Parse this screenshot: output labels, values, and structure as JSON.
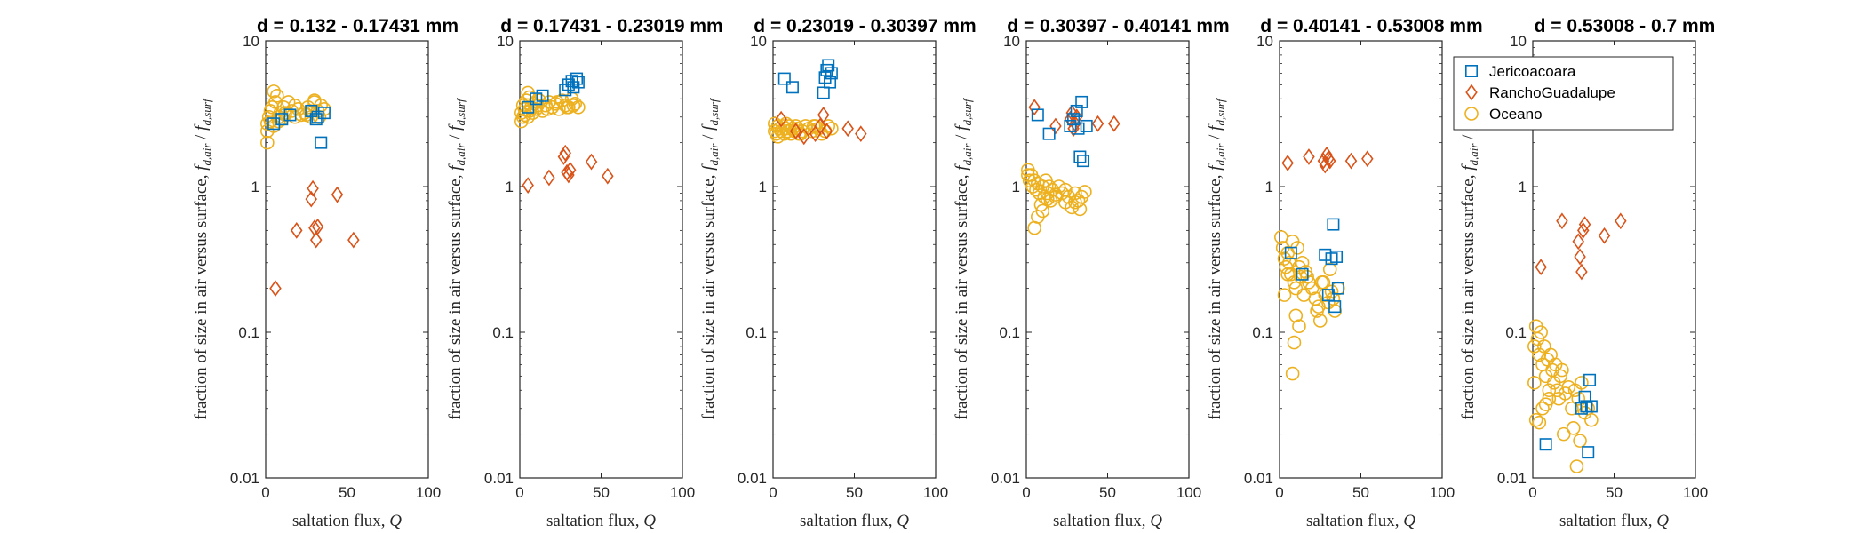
{
  "chart_data": [
    {
      "type": "scatter",
      "title": "d = 0.132 - 0.17431 mm",
      "xlabel": "saltation flux, Q",
      "ylabel": "fraction of size in air versus surface, f_d,air / f_d,surf",
      "xlim": [
        0,
        100
      ],
      "ylim": [
        0.01,
        10
      ],
      "yscale": "log",
      "xticks": [
        "0",
        "50",
        "100"
      ],
      "yticks": [
        "0.01",
        "0.1",
        "1",
        "10"
      ],
      "series": [
        {
          "name": "Jericoacoara",
          "x": [
            5,
            10,
            15,
            28,
            31,
            32,
            34,
            36
          ],
          "y": [
            2.7,
            2.9,
            3.1,
            3.3,
            2.9,
            3.0,
            2.0,
            3.2
          ]
        },
        {
          "name": "RanchoGuadalupe",
          "x": [
            6,
            19,
            28,
            29,
            30,
            31,
            32,
            44,
            54
          ],
          "y": [
            0.2,
            0.5,
            0.82,
            0.97,
            0.52,
            0.43,
            0.53,
            0.88,
            0.43
          ]
        },
        {
          "name": "Oceano",
          "x": [
            1,
            1,
            1,
            2,
            3,
            3,
            4,
            5,
            6,
            7,
            8,
            9,
            10,
            11,
            12,
            14,
            16,
            18,
            20,
            22,
            24,
            26,
            28,
            30,
            32,
            34,
            36,
            5,
            8,
            12,
            18,
            25,
            30,
            27,
            33
          ],
          "y": [
            2.0,
            2.4,
            2.7,
            3.0,
            2.8,
            3.3,
            3.5,
            4.5,
            3.8,
            4.2,
            3.0,
            3.2,
            2.9,
            3.5,
            3.1,
            3.8,
            3.3,
            3.0,
            3.4,
            3.1,
            3.2,
            3.5,
            3.0,
            3.8,
            3.3,
            3.6,
            3.4,
            2.6,
            2.8,
            3.2,
            3.6,
            3.1,
            3.9,
            3.3,
            3.0
          ]
        }
      ]
    },
    {
      "type": "scatter",
      "title": "d = 0.17431 - 0.23019 mm",
      "xlabel": "saltation flux, Q",
      "ylabel": "fraction of size in air versus surface, f_d,air / f_d,surf",
      "xlim": [
        0,
        100
      ],
      "ylim": [
        0.01,
        10
      ],
      "yscale": "log",
      "xticks": [
        "0",
        "50",
        "100"
      ],
      "yticks": [
        "0.01",
        "0.1",
        "1",
        "10"
      ],
      "series": [
        {
          "name": "Jericoacoara",
          "x": [
            5,
            10,
            14,
            28,
            30,
            32,
            33,
            35,
            36
          ],
          "y": [
            3.5,
            4.0,
            4.2,
            4.6,
            5.0,
            5.3,
            4.8,
            5.5,
            5.2
          ]
        },
        {
          "name": "RanchoGuadalupe",
          "x": [
            5,
            18,
            27,
            28,
            29,
            30,
            31,
            44,
            54
          ],
          "y": [
            1.02,
            1.15,
            1.6,
            1.7,
            1.25,
            1.2,
            1.3,
            1.48,
            1.18
          ]
        },
        {
          "name": "Oceano",
          "x": [
            1,
            1,
            2,
            2,
            3,
            4,
            5,
            5,
            6,
            7,
            8,
            9,
            10,
            12,
            14,
            16,
            18,
            20,
            22,
            24,
            26,
            28,
            30,
            32,
            34,
            36,
            3,
            6,
            11,
            17,
            23,
            29,
            33
          ],
          "y": [
            2.8,
            3.2,
            3.0,
            3.6,
            3.4,
            3.9,
            4.4,
            3.0,
            4.1,
            3.5,
            3.2,
            3.7,
            3.4,
            3.9,
            3.3,
            3.6,
            3.8,
            3.5,
            3.7,
            3.4,
            3.9,
            3.6,
            3.5,
            4.0,
            3.7,
            3.5,
            3.1,
            3.3,
            3.6,
            3.4,
            3.8,
            3.5,
            3.6
          ]
        }
      ]
    },
    {
      "type": "scatter",
      "title": "d = 0.23019 - 0.30397 mm",
      "xlabel": "saltation flux, Q",
      "ylabel": "fraction of size in air versus surface, f_d,air / f_d,surf",
      "xlim": [
        0,
        100
      ],
      "ylim": [
        0.01,
        10
      ],
      "yscale": "log",
      "xticks": [
        "0",
        "50",
        "100"
      ],
      "yticks": [
        "0.01",
        "0.1",
        "1",
        "10"
      ],
      "series": [
        {
          "name": "Jericoacoara",
          "x": [
            7,
            12,
            31,
            32,
            33,
            34,
            35,
            36
          ],
          "y": [
            5.5,
            4.8,
            4.4,
            5.6,
            6.3,
            6.8,
            5.2,
            6.0
          ]
        },
        {
          "name": "RanchoGuadalupe",
          "x": [
            5,
            14,
            19,
            26,
            29,
            31,
            33,
            46,
            54
          ],
          "y": [
            2.9,
            2.4,
            2.2,
            2.3,
            2.6,
            3.1,
            2.4,
            2.5,
            2.3
          ]
        },
        {
          "name": "Oceano",
          "x": [
            1,
            1,
            2,
            3,
            4,
            5,
            6,
            7,
            8,
            9,
            10,
            11,
            12,
            13,
            14,
            15,
            16,
            18,
            20,
            22,
            24,
            26,
            28,
            30,
            32,
            34,
            36,
            3,
            8,
            17,
            25
          ],
          "y": [
            2.4,
            2.7,
            2.3,
            2.6,
            2.5,
            2.4,
            2.6,
            2.3,
            2.5,
            2.4,
            2.6,
            2.3,
            2.5,
            2.4,
            2.6,
            2.5,
            2.3,
            2.4,
            2.6,
            2.5,
            2.4,
            2.6,
            2.5,
            2.3,
            2.4,
            2.6,
            2.5,
            2.2,
            2.7,
            2.3,
            2.6
          ]
        }
      ]
    },
    {
      "type": "scatter",
      "title": "d = 0.30397 - 0.40141 mm",
      "xlabel": "saltation flux, Q",
      "ylabel": "fraction of size in air versus surface, f_d,air / f_d,surf",
      "xlim": [
        0,
        100
      ],
      "ylim": [
        0.01,
        10
      ],
      "yscale": "log",
      "xticks": [
        "0",
        "50",
        "100"
      ],
      "yticks": [
        "0.01",
        "0.1",
        "1",
        "10"
      ],
      "series": [
        {
          "name": "Jericoacoara",
          "x": [
            7,
            14,
            27,
            29,
            31,
            32,
            33,
            34,
            35,
            37
          ],
          "y": [
            3.1,
            2.3,
            2.6,
            2.9,
            3.3,
            2.5,
            1.6,
            3.8,
            1.5,
            2.6
          ]
        },
        {
          "name": "RanchoGuadalupe",
          "x": [
            5,
            18,
            27,
            28,
            29,
            30,
            31,
            44,
            54
          ],
          "y": [
            3.5,
            2.6,
            2.9,
            3.2,
            2.5,
            2.7,
            3.0,
            2.7,
            2.7
          ]
        },
        {
          "name": "Oceano",
          "x": [
            1,
            1,
            2,
            3,
            4,
            5,
            6,
            7,
            8,
            9,
            10,
            11,
            12,
            13,
            14,
            15,
            16,
            18,
            20,
            22,
            24,
            26,
            28,
            30,
            32,
            34,
            36,
            5,
            7,
            10,
            13,
            18,
            24,
            30,
            33
          ],
          "y": [
            1.3,
            1.2,
            1.1,
            1.2,
            1.0,
            1.1,
            0.95,
            1.05,
            0.9,
            0.75,
            1.0,
            0.85,
            1.1,
            0.9,
            1.0,
            0.8,
            0.95,
            0.85,
            1.0,
            0.9,
            0.78,
            0.85,
            0.72,
            0.9,
            0.8,
            0.85,
            0.92,
            0.52,
            0.62,
            0.68,
            0.82,
            0.88,
            0.95,
            0.78,
            0.7
          ]
        }
      ]
    },
    {
      "type": "scatter",
      "title": "d = 0.40141 - 0.53008 mm",
      "xlabel": "saltation flux, Q",
      "ylabel": "fraction of size in air versus surface, f_d,air / f_d,surf",
      "xlim": [
        0,
        100
      ],
      "ylim": [
        0.01,
        10
      ],
      "yscale": "log",
      "xticks": [
        "0",
        "50",
        "100"
      ],
      "yticks": [
        "0.01",
        "0.1",
        "1",
        "10"
      ],
      "series": [
        {
          "name": "Jericoacoara",
          "x": [
            7,
            14,
            28,
            30,
            32,
            33,
            34,
            35,
            36
          ],
          "y": [
            0.35,
            0.25,
            0.34,
            0.18,
            0.32,
            0.55,
            0.15,
            0.33,
            0.2
          ]
        },
        {
          "name": "RanchoGuadalupe",
          "x": [
            5,
            18,
            27,
            28,
            29,
            30,
            31,
            44,
            54
          ],
          "y": [
            1.45,
            1.6,
            1.5,
            1.4,
            1.65,
            1.55,
            1.5,
            1.5,
            1.55
          ]
        },
        {
          "name": "Oceano",
          "x": [
            1,
            2,
            3,
            4,
            5,
            6,
            7,
            8,
            9,
            10,
            11,
            12,
            13,
            14,
            15,
            16,
            18,
            20,
            22,
            24,
            26,
            28,
            30,
            32,
            34,
            36,
            3,
            5,
            8,
            9,
            10,
            12,
            17,
            23,
            25,
            27,
            31,
            33
          ],
          "y": [
            0.45,
            0.38,
            0.32,
            0.28,
            0.35,
            0.3,
            0.25,
            0.42,
            0.22,
            0.2,
            0.38,
            0.28,
            0.24,
            0.3,
            0.18,
            0.26,
            0.22,
            0.2,
            0.17,
            0.15,
            0.22,
            0.18,
            0.16,
            0.19,
            0.14,
            0.2,
            0.18,
            0.25,
            0.052,
            0.085,
            0.13,
            0.11,
            0.24,
            0.14,
            0.12,
            0.22,
            0.27,
            0.17
          ]
        }
      ]
    },
    {
      "type": "scatter",
      "title": "d = 0.53008 - 0.7 mm",
      "xlabel": "saltation flux, Q",
      "ylabel": "fraction of size in air versus surface, f_d,air / f_d,surf",
      "xlim": [
        0,
        100
      ],
      "ylim": [
        0.01,
        10
      ],
      "yscale": "log",
      "xticks": [
        "0",
        "50",
        "100"
      ],
      "yticks": [
        "0.01",
        "0.1",
        "1",
        "10"
      ],
      "legend": {
        "position": "top-right",
        "entries": [
          "Jericoacoara",
          "RanchoGuadalupe",
          "Oceano"
        ]
      },
      "series": [
        {
          "name": "Jericoacoara",
          "x": [
            8,
            30,
            32,
            33,
            34,
            35,
            36
          ],
          "y": [
            0.017,
            0.03,
            0.036,
            0.031,
            0.015,
            0.047,
            0.031
          ]
        },
        {
          "name": "RanchoGuadalupe",
          "x": [
            5,
            18,
            28,
            29,
            30,
            31,
            32,
            44,
            54
          ],
          "y": [
            0.28,
            0.58,
            0.42,
            0.33,
            0.26,
            0.5,
            0.55,
            0.46,
            0.58
          ]
        },
        {
          "name": "Oceano",
          "x": [
            1,
            1,
            2,
            3,
            4,
            5,
            6,
            7,
            8,
            9,
            10,
            11,
            12,
            13,
            14,
            15,
            16,
            17,
            18,
            20,
            22,
            24,
            26,
            28,
            30,
            32,
            34,
            36,
            2,
            4,
            6,
            8,
            10,
            19,
            25,
            27,
            29
          ],
          "y": [
            0.08,
            0.045,
            0.11,
            0.09,
            0.07,
            0.1,
            0.06,
            0.08,
            0.05,
            0.065,
            0.04,
            0.07,
            0.055,
            0.045,
            0.06,
            0.04,
            0.035,
            0.05,
            0.055,
            0.038,
            0.042,
            0.03,
            0.04,
            0.035,
            0.045,
            0.028,
            0.03,
            0.025,
            0.025,
            0.024,
            0.03,
            0.032,
            0.035,
            0.02,
            0.022,
            0.012,
            0.018
          ]
        }
      ]
    }
  ],
  "series_colors": {
    "Jericoacoara": "#0072BD",
    "RanchoGuadalupe": "#D95319",
    "Oceano": "#EDB120"
  },
  "legend_labels": [
    "Jericoacoara",
    "RanchoGuadalupe",
    "Oceano"
  ]
}
